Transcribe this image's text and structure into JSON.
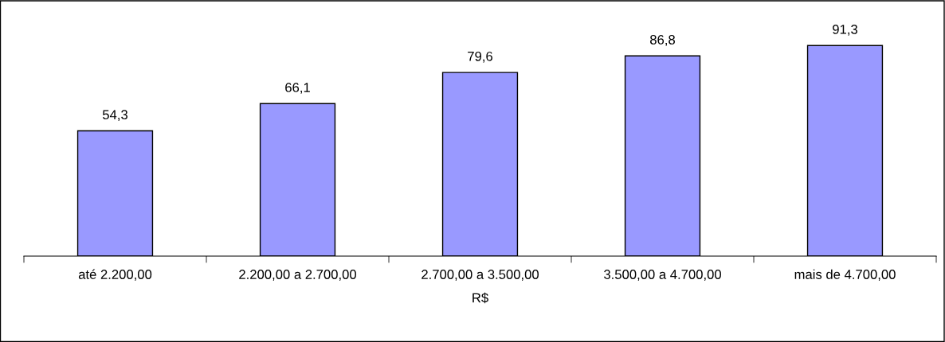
{
  "chart_data": {
    "type": "bar",
    "xlabel": "R$",
    "categories": [
      "até 2.200,00",
      "2.200,00 a 2.700,00",
      "2.700,00 a 3.500,00",
      "3.500,00 a 4.700,00",
      "mais de 4.700,00"
    ],
    "values": [
      54.3,
      66.1,
      79.6,
      86.8,
      91.3
    ],
    "value_labels": [
      "54,3",
      "66,1",
      "79,6",
      "86,8",
      "91,3"
    ],
    "color": "#9999ff",
    "tick_labels": "x"
  }
}
